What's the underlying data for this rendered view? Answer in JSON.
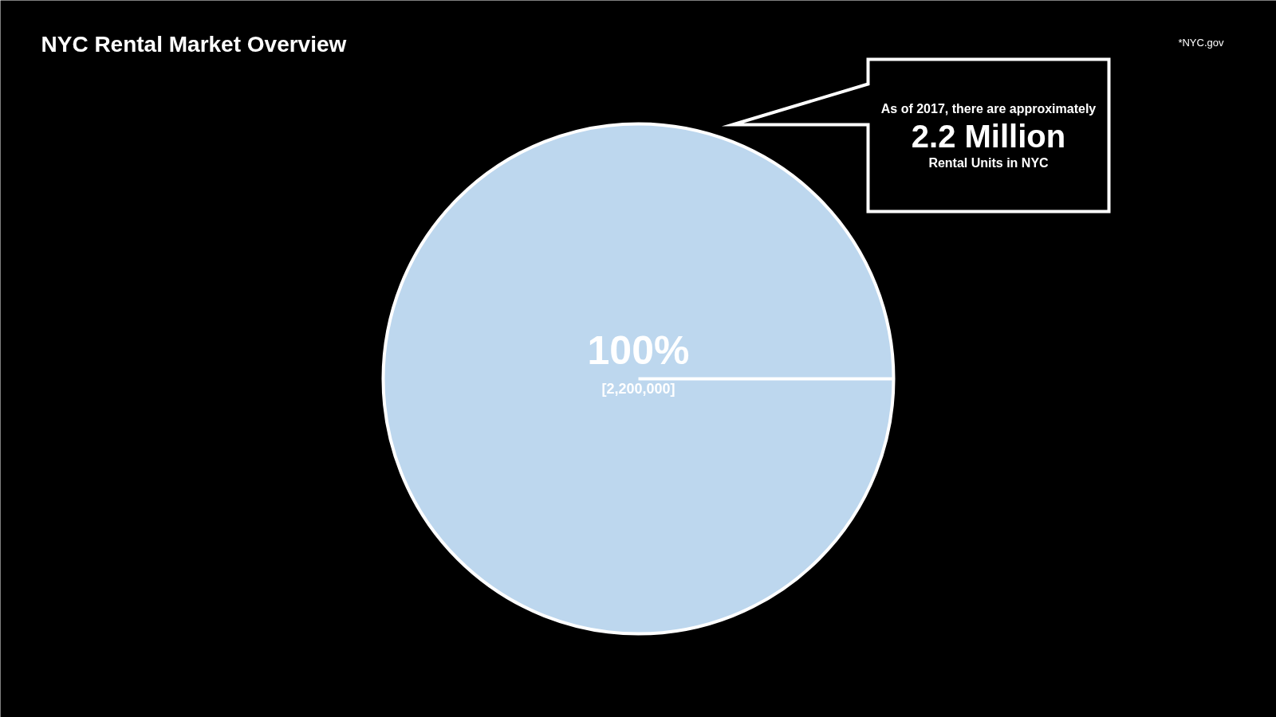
{
  "chart_data": {
    "type": "pie",
    "title": "NYC Rental Market Overview",
    "categories": [
      null
    ],
    "values": [
      100
    ],
    "colors": [
      "#bdd7ee"
    ],
    "value_labels": [
      "100%\n[2,200,000]"
    ],
    "annotations": [
      "As of 2017, there are approximately",
      "2.2 Million",
      "Rental Units in NYC",
      "*NYC.gov"
    ]
  }
}
